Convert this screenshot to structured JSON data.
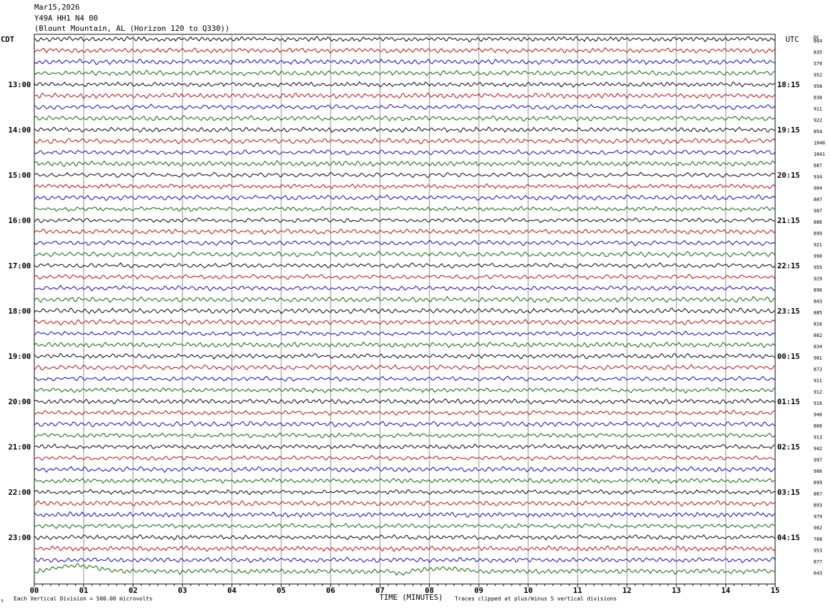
{
  "header": {
    "date": "Mar15,2026",
    "station": "Y49A HH1 N4 00",
    "location": "(Blount Mountain, AL (Horizon 120 to Q330))"
  },
  "labels": {
    "left_tz": "CDT",
    "right_tz": "UTC",
    "dc_header": "DC",
    "xlabel": "TIME (MINUTES)",
    "scale_note": "Each Vertical Division =  500.00 microvolts",
    "clip_note": "Traces clipped at plus/minus 5 vertical divisions",
    "corner_mark": "†"
  },
  "chart_data": {
    "type": "line",
    "title": "Y49A HH1 N4 00",
    "xlabel": "TIME (MINUTES)",
    "xlim": [
      0,
      15
    ],
    "x_ticks": [
      "00",
      "01",
      "02",
      "03",
      "04",
      "05",
      "06",
      "07",
      "08",
      "09",
      "10",
      "11",
      "12",
      "13",
      "14",
      "15"
    ],
    "grid": "vertical lines every minute",
    "trace_colors": [
      "#000000",
      "#cc0000",
      "#0000cc",
      "#006600"
    ],
    "left_hour_labels": [
      "13:00",
      "14:00",
      "15:00",
      "16:00",
      "17:00",
      "18:00",
      "19:00",
      "20:00",
      "21:00",
      "22:00",
      "23:00"
    ],
    "right_hour_labels": [
      "18:15",
      "19:15",
      "20:15",
      "21:15",
      "22:15",
      "23:15",
      "00:15",
      "01:15",
      "02:15",
      "03:15",
      "04:15"
    ],
    "dc_offsets": [
      "864",
      "835",
      "579",
      "952",
      "958",
      "838",
      "911",
      "922",
      "854",
      "1048",
      "1041",
      "887",
      "934",
      "904",
      "807",
      "907",
      "886",
      "899",
      "921",
      "990",
      "955",
      "929",
      "896",
      "843",
      "885",
      "816",
      "862",
      "834",
      "901",
      "872",
      "911",
      "912",
      "916",
      "946",
      "866",
      "913",
      "942",
      "997",
      "906",
      "899",
      "867",
      "893",
      "979",
      "902",
      "768",
      "953",
      "877",
      "643"
    ]
  }
}
